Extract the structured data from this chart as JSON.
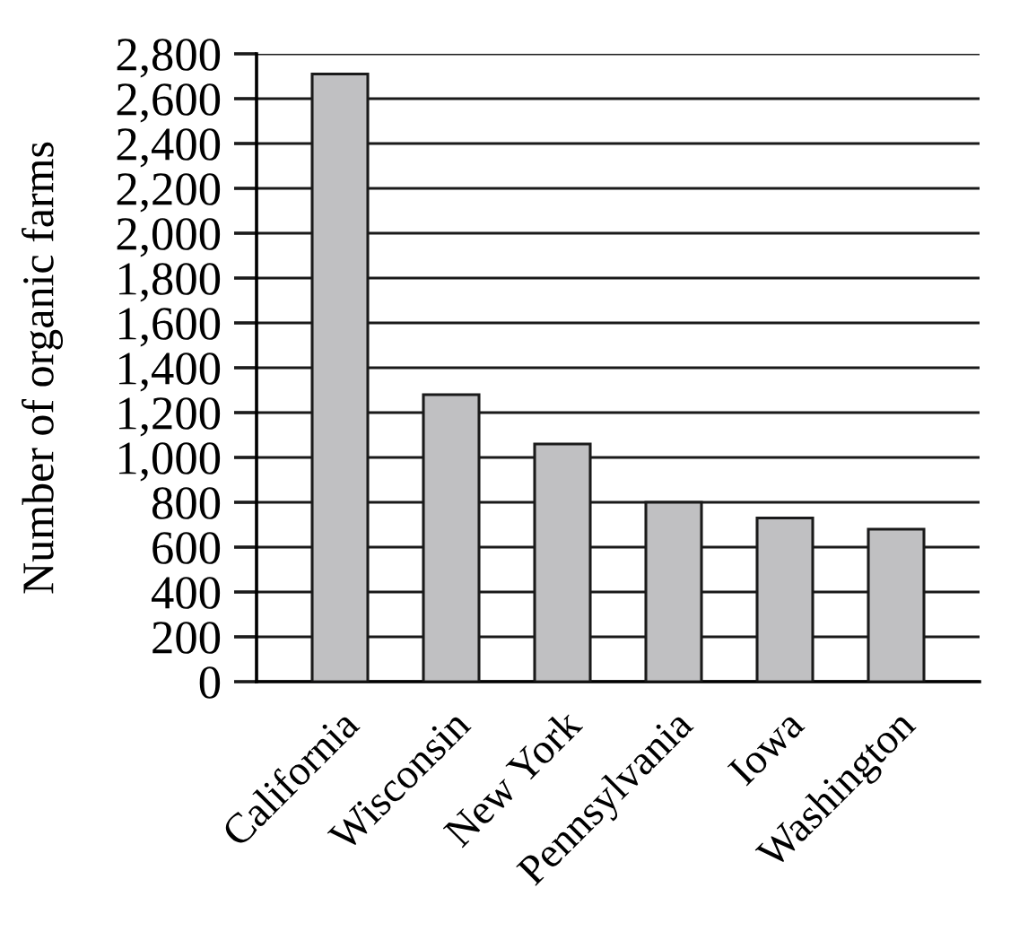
{
  "chart_data": {
    "type": "bar",
    "ylabel": "Number of organic farms",
    "categories": [
      "California",
      "Wisconsin",
      "New York",
      "Pennsylvania",
      "Iowa",
      "Washington"
    ],
    "values": [
      2710,
      1280,
      1060,
      800,
      730,
      680
    ],
    "color": "#c0c0c2",
    "ylim": [
      0,
      2800
    ],
    "yticks": [
      0,
      200,
      400,
      600,
      800,
      {
        "value": 1000,
        "label": "1,000"
      },
      {
        "value": 1200,
        "label": "1,200"
      },
      {
        "value": 1400,
        "label": "1,400"
      },
      {
        "value": 1600,
        "label": "1,600"
      },
      {
        "value": 1800,
        "label": "1,800"
      },
      {
        "value": 2000,
        "label": "2,000"
      },
      {
        "value": 2200,
        "label": "2,200"
      },
      {
        "value": 2400,
        "label": "2,400"
      },
      {
        "value": 2600,
        "label": "2,600"
      },
      {
        "value": 2800,
        "label": "2,800"
      }
    ],
    "grid": "y"
  }
}
